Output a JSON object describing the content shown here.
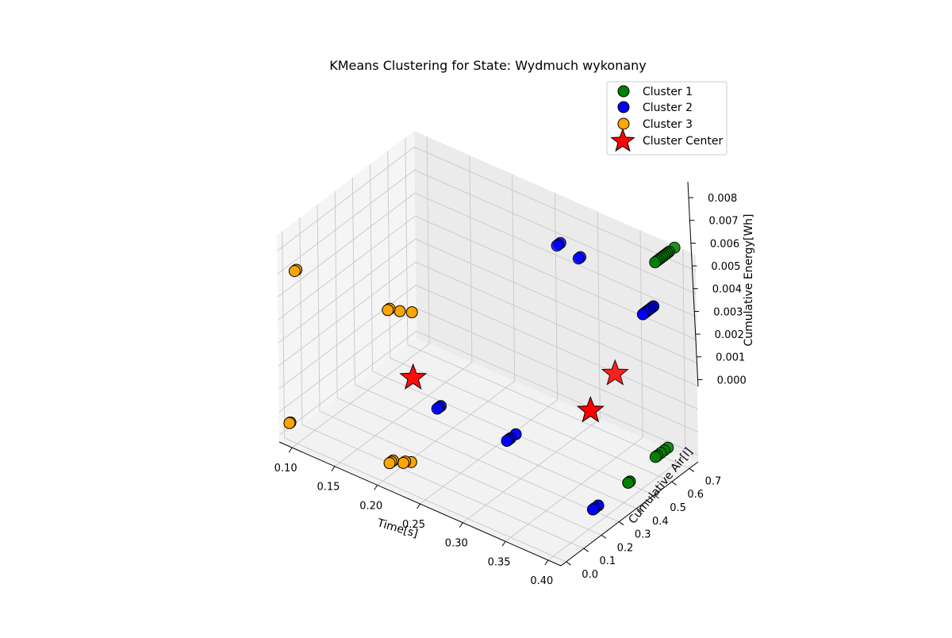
{
  "chart_data": {
    "type": "scatter",
    "title": "KMeans Clustering for State: Wydmuch wykonany",
    "xlabel": "Time[s]",
    "ylabel": "Cumulative Air[l]",
    "zlabel": "Cumulative Energy[Wh]",
    "x_ticks": [
      "0.10",
      "0.15",
      "0.20",
      "0.25",
      "0.30",
      "0.35",
      "0.40"
    ],
    "y_ticks": [
      "0.0",
      "0.1",
      "0.2",
      "0.3",
      "0.4",
      "0.5",
      "0.6",
      "0.7"
    ],
    "z_ticks": [
      "0.000",
      "0.001",
      "0.002",
      "0.003",
      "0.004",
      "0.005",
      "0.006",
      "0.007",
      "0.008"
    ],
    "xlim": [
      0.085,
      0.415
    ],
    "ylim": [
      -0.03,
      0.75
    ],
    "zlim": [
      -0.0003,
      0.0087
    ],
    "legend": {
      "position": "top-right",
      "entries": [
        "Cluster 1",
        "Cluster 2",
        "Cluster 3",
        "Cluster Center"
      ]
    },
    "colors": {
      "cluster_1": "#008000",
      "cluster_2": "#0000ff",
      "cluster_3": "#ffa500",
      "center": "#ff0000"
    },
    "series": [
      {
        "name": "Cluster 1",
        "points": [
          [
            0.39,
            0.75,
            0.0086
          ],
          [
            0.39,
            0.64,
            0.0086
          ],
          [
            0.39,
            0.65,
            0.0086
          ],
          [
            0.39,
            0.66,
            0.0086
          ],
          [
            0.39,
            0.67,
            0.0086
          ],
          [
            0.39,
            0.68,
            0.0086
          ],
          [
            0.39,
            0.69,
            0.0086
          ],
          [
            0.39,
            0.7,
            0.0086
          ],
          [
            0.39,
            0.71,
            0.0086
          ],
          [
            0.39,
            0.72,
            0.0086
          ],
          [
            0.395,
            0.45,
            0.0002
          ],
          [
            0.395,
            0.46,
            0.0002
          ],
          [
            0.39,
            0.63,
            0.0002
          ],
          [
            0.39,
            0.64,
            0.0002
          ],
          [
            0.39,
            0.66,
            0.0002
          ],
          [
            0.39,
            0.68,
            0.0002
          ],
          [
            0.39,
            0.7,
            0.0002
          ]
        ]
      },
      {
        "name": "Cluster 2",
        "points": [
          [
            0.26,
            0.71,
            0.0068
          ],
          [
            0.26,
            0.72,
            0.0068
          ],
          [
            0.26,
            0.73,
            0.0068
          ],
          [
            0.3,
            0.64,
            0.0073
          ],
          [
            0.3,
            0.65,
            0.0073
          ],
          [
            0.4,
            0.52,
            0.0072
          ],
          [
            0.4,
            0.53,
            0.0072
          ],
          [
            0.4,
            0.54,
            0.0072
          ],
          [
            0.4,
            0.55,
            0.0072
          ],
          [
            0.4,
            0.56,
            0.0072
          ],
          [
            0.4,
            0.57,
            0.0072
          ],
          [
            0.4,
            0.58,
            0.0072
          ],
          [
            0.19,
            0.36,
            0.0006
          ],
          [
            0.19,
            0.37,
            0.0006
          ],
          [
            0.19,
            0.38,
            0.0006
          ],
          [
            0.28,
            0.32,
            0.0009
          ],
          [
            0.28,
            0.33,
            0.0009
          ],
          [
            0.28,
            0.34,
            0.0009
          ],
          [
            0.28,
            0.37,
            0.0009
          ],
          [
            0.395,
            0.25,
            0.0002
          ],
          [
            0.395,
            0.26,
            0.0002
          ],
          [
            0.395,
            0.28,
            0.0002
          ]
        ]
      },
      {
        "name": "Cluster 3",
        "points": [
          [
            0.095,
            0.02,
            0.007
          ],
          [
            0.095,
            0.03,
            0.007
          ],
          [
            0.2,
            0.04,
            0.0069
          ],
          [
            0.2,
            0.05,
            0.0069
          ],
          [
            0.21,
            0.06,
            0.0069
          ],
          [
            0.22,
            0.08,
            0.0069
          ],
          [
            0.09,
            0.005,
            0.0004
          ],
          [
            0.09,
            0.01,
            0.0004
          ],
          [
            0.2,
            0.04,
            0.00025
          ],
          [
            0.2,
            0.05,
            0.00025
          ],
          [
            0.2,
            0.06,
            0.00025
          ],
          [
            0.21,
            0.07,
            0.00025
          ],
          [
            0.21,
            0.08,
            0.00025
          ],
          [
            0.215,
            0.09,
            0.00025
          ]
        ]
      },
      {
        "name": "Cluster Center",
        "points": [
          [
            0.185,
            0.25,
            0.0025
          ],
          [
            0.333,
            0.68,
            0.0026
          ],
          [
            0.36,
            0.41,
            0.003
          ]
        ]
      }
    ]
  }
}
